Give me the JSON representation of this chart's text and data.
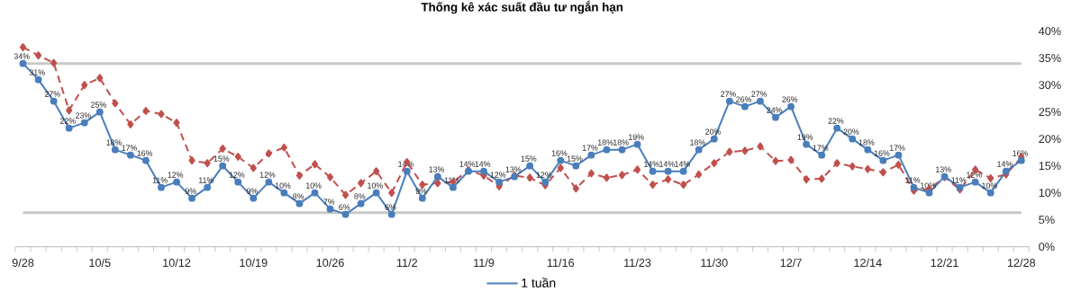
{
  "chart_data": {
    "type": "line",
    "title": "Thống kê xác suất đầu tư ngắn hạn",
    "categories": [
      "9/28",
      null,
      null,
      null,
      null,
      "10/5",
      null,
      null,
      null,
      null,
      "10/12",
      null,
      null,
      null,
      null,
      "10/19",
      null,
      null,
      null,
      null,
      "10/26",
      null,
      null,
      null,
      null,
      "11/2",
      null,
      null,
      null,
      null,
      "11/9",
      null,
      null,
      null,
      null,
      "11/16",
      null,
      null,
      null,
      null,
      "11/23",
      null,
      null,
      null,
      null,
      "11/30",
      null,
      null,
      null,
      null,
      "12/7",
      null,
      null,
      null,
      null,
      "12/14",
      null,
      null,
      null,
      null,
      "12/21",
      null,
      null,
      null,
      null,
      "12/28"
    ],
    "series": [
      {
        "name": "1 tuần",
        "color": "#4a7ebb",
        "marker": "circle",
        "line_style": "solid",
        "values": [
          34,
          31,
          27,
          22,
          23,
          25,
          18,
          17,
          16,
          11,
          12,
          9,
          11,
          15,
          12,
          9,
          12,
          10,
          8,
          10,
          7,
          6,
          8,
          10,
          6,
          14,
          9,
          13,
          11,
          14,
          14,
          12,
          13,
          15,
          12,
          16,
          15,
          17,
          18,
          18,
          19,
          14,
          14,
          14,
          18,
          20,
          27,
          26,
          27,
          24,
          26,
          19,
          17,
          22,
          20,
          18,
          16,
          17,
          11,
          10,
          13,
          11,
          12,
          10,
          14,
          16
        ],
        "value_labels": [
          "34%",
          "31%",
          "27%",
          "22%",
          "23%",
          "25%",
          "18%",
          "17%",
          "16%",
          "11%",
          "12%",
          "9%",
          "11%",
          "15%",
          "12%",
          "9%",
          "12%",
          "10%",
          "8%",
          "10%",
          "7%",
          "6%",
          "8%",
          "10%",
          "6%",
          "14%",
          "9%",
          "13%",
          "11%",
          "14%",
          "14%",
          "12%",
          "13%",
          "15%",
          "12%",
          "16%",
          "15%",
          "17%",
          "18%",
          "18%",
          "19%",
          "14%",
          "14%",
          "14%",
          "18%",
          "20%",
          "27%",
          "26%",
          "27%",
          "24%",
          "26%",
          "19%",
          "17%",
          "22%",
          "20%",
          "18%",
          "16%",
          "17%",
          "11%",
          "10%",
          "13%",
          "11%",
          "12%",
          "10%",
          "14%",
          "16%"
        ]
      },
      {
        "color": "#c0504d",
        "marker": "diamond",
        "line_style": "dashed",
        "values": [
          37.0,
          35.5,
          34.1,
          25.3,
          30.0,
          31.3,
          26.6,
          22.7,
          25.2,
          24.6,
          23.0,
          16.0,
          15.5,
          18.2,
          16.7,
          14.6,
          17.3,
          18.4,
          13.2,
          15.3,
          12.9,
          9.6,
          11.8,
          14.0,
          10.0,
          15.7,
          11.5,
          11.8,
          12.0,
          14.2,
          13.2,
          11.2,
          13.2,
          12.8,
          11.4,
          14.6,
          10.8,
          13.6,
          12.8,
          13.3,
          14.3,
          11.5,
          12.5,
          11.5,
          13.4,
          15.5,
          17.6,
          17.8,
          18.6,
          15.9,
          16.1,
          12.5,
          12.6,
          15.5,
          14.9,
          14.4,
          13.8,
          15.2,
          10.4,
          10.7,
          12.9,
          10.6,
          14.3,
          12.7,
          13.4,
          16.6
        ]
      }
    ],
    "ylim": [
      0,
      40
    ],
    "yticks": [
      {
        "value": 0,
        "label": "0%"
      },
      {
        "value": 5,
        "label": "5%"
      },
      {
        "value": 10,
        "label": "10%"
      },
      {
        "value": 15,
        "label": "15%"
      },
      {
        "value": 20,
        "label": "20%"
      },
      {
        "value": 25,
        "label": "25%"
      },
      {
        "value": 30,
        "label": "30%"
      },
      {
        "value": 35,
        "label": "35%"
      },
      {
        "value": 40,
        "label": "40%"
      }
    ],
    "ref_lines": [
      {
        "axis": "y",
        "value": 34,
        "color": "#c8c8c8"
      },
      {
        "axis": "y",
        "value": 6.3,
        "color": "#c8c8c8"
      }
    ],
    "legend": "bottom"
  }
}
